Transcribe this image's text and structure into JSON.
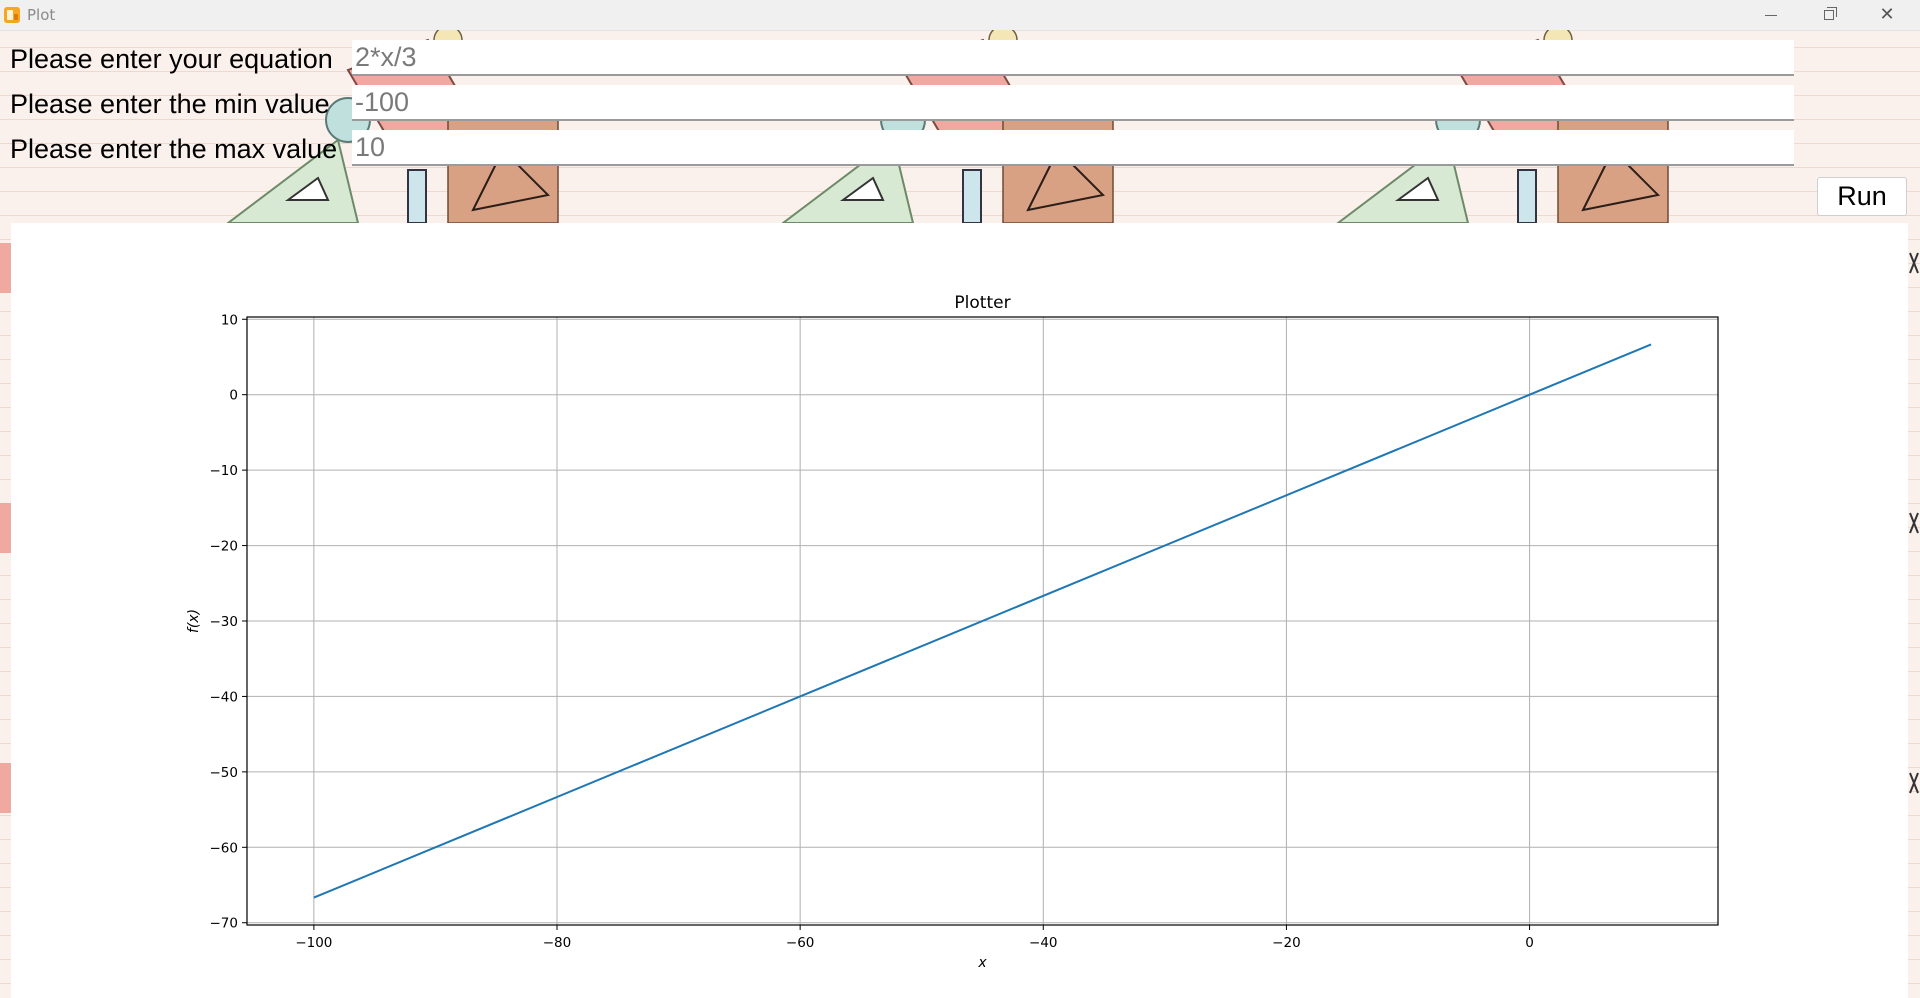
{
  "window": {
    "title": "Plot"
  },
  "form": {
    "equation_label": "Please enter your equation",
    "equation_value": "2*x/3",
    "min_label": "Please enter the min value",
    "min_value": "-100",
    "max_label": "Please enter the max value",
    "max_value": "10",
    "run_label": "Run"
  },
  "icons": {
    "app": "app-icon",
    "minimize": "minimize-icon",
    "maximize": "maximize-icon",
    "close": "close-icon"
  },
  "colors": {
    "line": "#1f77b4",
    "grid": "#b0b0b0",
    "background": "#fbf1ec"
  },
  "chart_data": {
    "type": "line",
    "title": "Plotter",
    "xlabel": "x",
    "ylabel": "f(x)",
    "x": [
      -100,
      10
    ],
    "series": [
      {
        "values": [
          -66.667,
          6.667
        ]
      }
    ],
    "xlim": [
      -105.5,
      15.5
    ],
    "ylim": [
      -70.3,
      10.3
    ],
    "xticks": [
      -100,
      -80,
      -60,
      -40,
      -20,
      0
    ],
    "xtick_labels": [
      "−100",
      "−80",
      "−60",
      "−40",
      "−20",
      "0"
    ],
    "yticks": [
      10,
      0,
      -10,
      -20,
      -30,
      -40,
      -50,
      -60,
      -70
    ],
    "ytick_labels": [
      "10",
      "0",
      "−10",
      "−20",
      "−30",
      "−40",
      "−50",
      "−60",
      "−70"
    ],
    "grid": true
  }
}
